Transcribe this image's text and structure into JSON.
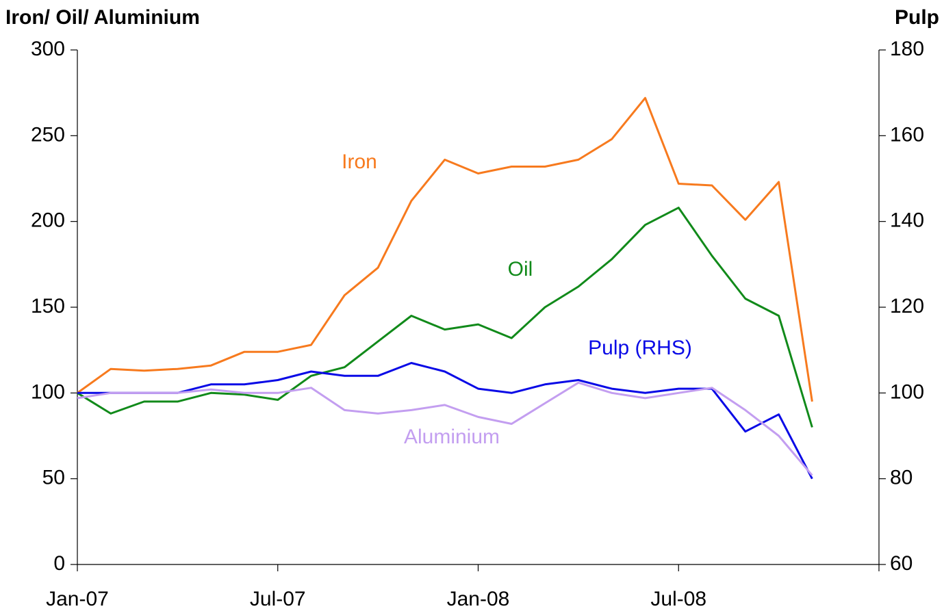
{
  "chart_data": {
    "type": "line",
    "y_label": "Iron/ Oil/ Aluminium",
    "y2_label": "Pulp",
    "x": [
      "2007-01",
      "2007-02",
      "2007-03",
      "2007-04",
      "2007-05",
      "2007-06",
      "2007-07",
      "2007-08",
      "2007-09",
      "2007-10",
      "2007-11",
      "2007-12",
      "2008-01",
      "2008-02",
      "2008-03",
      "2008-04",
      "2008-05",
      "2008-06",
      "2008-07",
      "2008-08",
      "2008-09",
      "2008-10",
      "2008-11"
    ],
    "xlim": [
      "2007-01",
      "2009-01"
    ],
    "xticks": [
      {
        "value": "2007-01",
        "label": "Jan-07"
      },
      {
        "value": "2007-07",
        "label": "Jul-07"
      },
      {
        "value": "2008-01",
        "label": "Jan-08"
      },
      {
        "value": "2008-07",
        "label": "Jul-08"
      },
      {
        "value": "2009-01",
        "label": null
      }
    ],
    "ylim": [
      0,
      300
    ],
    "yticks": [
      0,
      50,
      100,
      150,
      200,
      250,
      300
    ],
    "y2lim": [
      60,
      180
    ],
    "y2ticks": [
      60,
      80,
      100,
      120,
      140,
      160,
      180
    ],
    "grid": false,
    "series": [
      {
        "name": "Iron",
        "color": "#f77a1e",
        "values": [
          100,
          114,
          113,
          114,
          116,
          124,
          124,
          128,
          157,
          173,
          212,
          236,
          228,
          232,
          232,
          236,
          248,
          272,
          222,
          221,
          201,
          223,
          95
        ]
      },
      {
        "name": "Oil",
        "color": "#118a1a",
        "values": [
          100,
          88,
          95,
          95,
          100,
          99,
          96,
          110,
          115,
          130,
          145,
          137,
          140,
          132,
          150,
          162,
          178,
          198,
          208,
          180,
          155,
          145,
          80
        ]
      },
      {
        "name": "Pulp (RHS)",
        "color": "#0a0ae6",
        "axis": "y2",
        "values": [
          100,
          100,
          100,
          100,
          102,
          102,
          103,
          105,
          104,
          104,
          107,
          105,
          101,
          100,
          102,
          103,
          101,
          100,
          101,
          101,
          91,
          95,
          80
        ]
      },
      {
        "name": "Aluminium",
        "color": "#c39ef0",
        "values": [
          97,
          100,
          100,
          100,
          102,
          100,
          100,
          103,
          90,
          88,
          90,
          93,
          86,
          82,
          94,
          106,
          100,
          97,
          100,
          103,
          90,
          75,
          52
        ]
      }
    ]
  }
}
